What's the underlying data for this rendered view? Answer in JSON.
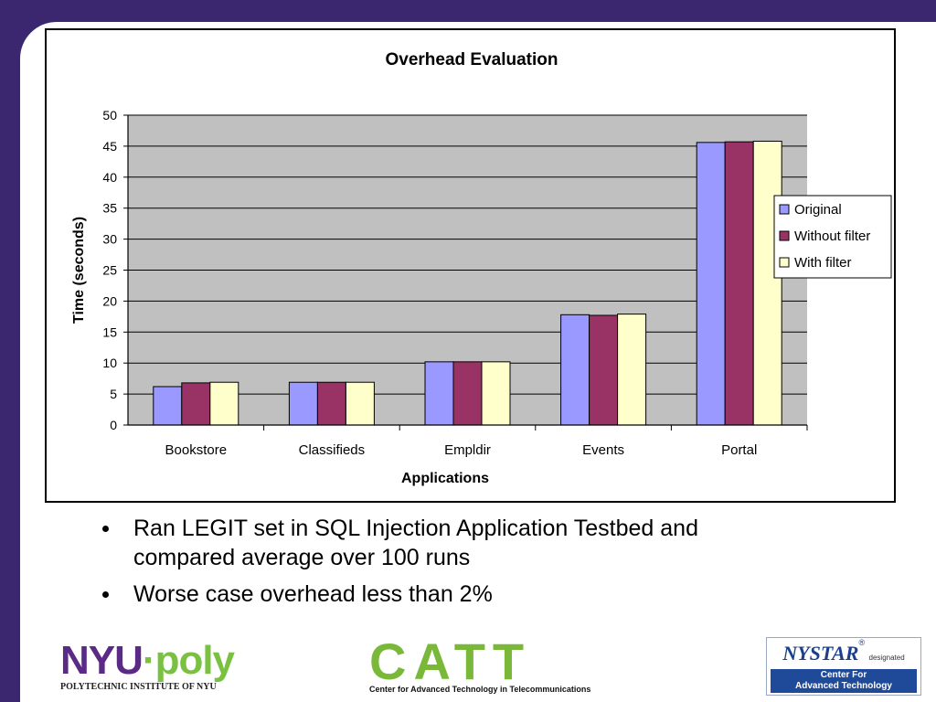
{
  "chart_data": {
    "type": "bar",
    "title": "Overhead Evaluation",
    "xlabel": "Applications",
    "ylabel": "Time (seconds)",
    "categories": [
      "Bookstore",
      "Classifieds",
      "Empldir",
      "Events",
      "Portal"
    ],
    "ylim": [
      0,
      50
    ],
    "yticks": [
      0,
      5,
      10,
      15,
      20,
      25,
      30,
      35,
      40,
      45,
      50
    ],
    "grid": true,
    "legend_position": "right",
    "series": [
      {
        "name": "Original",
        "color": "#9999ff",
        "values": [
          6.2,
          6.9,
          10.2,
          17.8,
          45.6
        ]
      },
      {
        "name": "Without filter",
        "color": "#993366",
        "values": [
          6.8,
          6.9,
          10.2,
          17.7,
          45.7
        ]
      },
      {
        "name": "With filter",
        "color": "#ffffcc",
        "values": [
          6.9,
          6.9,
          10.2,
          17.9,
          45.8
        ]
      }
    ],
    "plot_background": "#c0c0c0"
  },
  "bullets": [
    "Ran LEGIT set in SQL Injection Application Testbed and compared average over 100 runs",
    "Worse case overhead less than 2%"
  ],
  "logos": {
    "nyu_poly": {
      "nyu": "NYU",
      "dot": "·",
      "poly": "poly",
      "subtitle": "POLYTECHNIC INSTITUTE OF NYU"
    },
    "catt": {
      "word": "CATT",
      "subtitle": "Center for Advanced Technology in Telecommunications"
    },
    "nystar": {
      "word": "NYSTAR",
      "mark": "®",
      "designated": "designated",
      "line1": "Center For",
      "line2": "Advanced Technology"
    }
  },
  "colors": {
    "slide_border": "#3a2770",
    "nyu_purple": "#5b2a86",
    "poly_green": "#7ac142",
    "catt_green": "#7ab83a",
    "nystar_blue": "#1f4a9a"
  }
}
